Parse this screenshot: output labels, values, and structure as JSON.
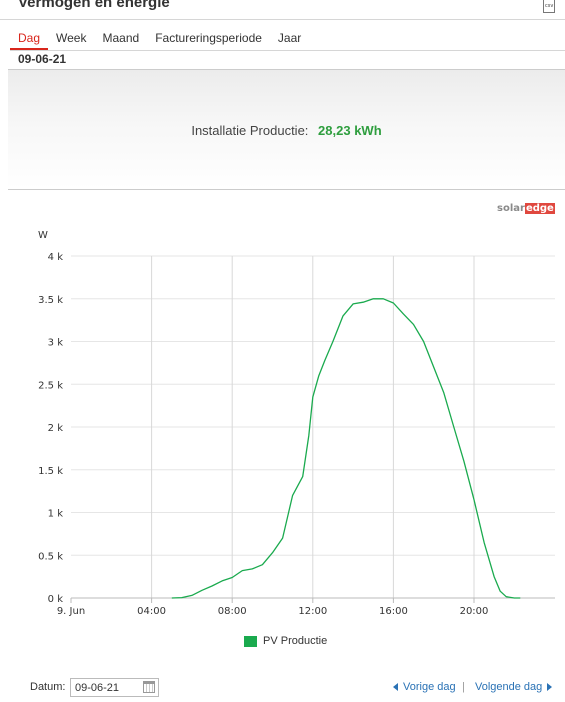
{
  "widget": {
    "title": "Vermogen en energie",
    "export_icon": "csv-file-icon"
  },
  "tabs": [
    {
      "label": "Dag",
      "active": true
    },
    {
      "label": "Week",
      "active": false
    },
    {
      "label": "Maand",
      "active": false
    },
    {
      "label": "Factureringsperiode",
      "active": false
    },
    {
      "label": "Jaar",
      "active": false
    }
  ],
  "period_label": "09-06-21",
  "summary": {
    "label": "Installatie Productie:",
    "value": "28,23 kWh"
  },
  "brand": {
    "part1": "solar",
    "part2": "edge"
  },
  "colors": {
    "accent": "#d9261c",
    "series": "#1aaa4e",
    "value": "#2e9e3e",
    "link": "#2a72b5"
  },
  "chart_data": {
    "type": "line",
    "ylabel": "W",
    "xlabel": "",
    "ylim": [
      0,
      4000
    ],
    "xlim": [
      0,
      24
    ],
    "yticks": [
      {
        "v": 0,
        "label": "0 k"
      },
      {
        "v": 500,
        "label": "0.5 k"
      },
      {
        "v": 1000,
        "label": "1 k"
      },
      {
        "v": 1500,
        "label": "1.5 k"
      },
      {
        "v": 2000,
        "label": "2 k"
      },
      {
        "v": 2500,
        "label": "2.5 k"
      },
      {
        "v": 3000,
        "label": "3 k"
      },
      {
        "v": 3500,
        "label": "3.5 k"
      },
      {
        "v": 4000,
        "label": "4 k"
      }
    ],
    "xticks": [
      {
        "v": 0,
        "label": "9. Jun"
      },
      {
        "v": 4,
        "label": "04:00"
      },
      {
        "v": 8,
        "label": "08:00"
      },
      {
        "v": 12,
        "label": "12:00"
      },
      {
        "v": 16,
        "label": "16:00"
      },
      {
        "v": 20,
        "label": "20:00"
      }
    ],
    "series": [
      {
        "name": "PV Productie",
        "points": [
          [
            5.0,
            0
          ],
          [
            5.5,
            5
          ],
          [
            6.0,
            30
          ],
          [
            6.5,
            90
          ],
          [
            7.0,
            140
          ],
          [
            7.5,
            200
          ],
          [
            8.0,
            240
          ],
          [
            8.5,
            320
          ],
          [
            9.0,
            340
          ],
          [
            9.5,
            390
          ],
          [
            10.0,
            530
          ],
          [
            10.5,
            700
          ],
          [
            10.8,
            1000
          ],
          [
            11.0,
            1200
          ],
          [
            11.5,
            1420
          ],
          [
            11.8,
            1900
          ],
          [
            12.0,
            2350
          ],
          [
            12.3,
            2600
          ],
          [
            12.6,
            2780
          ],
          [
            13.0,
            3000
          ],
          [
            13.5,
            3300
          ],
          [
            14.0,
            3440
          ],
          [
            14.5,
            3460
          ],
          [
            15.0,
            3500
          ],
          [
            15.5,
            3500
          ],
          [
            16.0,
            3450
          ],
          [
            16.5,
            3320
          ],
          [
            17.0,
            3200
          ],
          [
            17.5,
            3000
          ],
          [
            18.0,
            2700
          ],
          [
            18.5,
            2400
          ],
          [
            19.0,
            2000
          ],
          [
            19.5,
            1600
          ],
          [
            20.0,
            1150
          ],
          [
            20.5,
            650
          ],
          [
            21.0,
            250
          ],
          [
            21.3,
            80
          ],
          [
            21.6,
            15
          ],
          [
            22.0,
            0
          ],
          [
            22.3,
            0
          ]
        ]
      }
    ],
    "grid": "vertical"
  },
  "footer": {
    "datum_label": "Datum:",
    "datum_value": "09-06-21",
    "prev_label": "Vorige dag",
    "separator": "|",
    "next_label": "Volgende dag"
  }
}
